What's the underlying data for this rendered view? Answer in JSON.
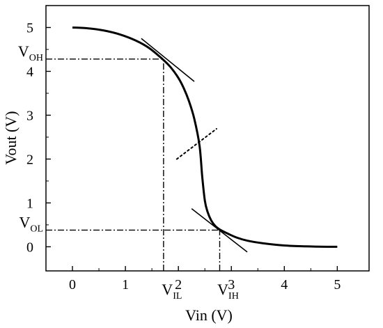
{
  "chart_data": {
    "type": "line",
    "xlabel": "Vin (V)",
    "ylabel": "Vout (V)",
    "xlim": [
      -0.5,
      5.6
    ],
    "ylim": [
      -0.55,
      5.5
    ],
    "x_ticks": [
      0,
      1,
      2,
      3,
      4,
      5
    ],
    "y_ticks": [
      0,
      1,
      2,
      3,
      4,
      5
    ],
    "grid": false,
    "series": [
      {
        "x": [
          0,
          0.3,
          0.6,
          0.9,
          1.2,
          1.45,
          1.7,
          1.85,
          2.0,
          2.1,
          2.2,
          2.3,
          2.4,
          2.45,
          2.5,
          2.55,
          2.62,
          2.7,
          2.8,
          2.95,
          3.1,
          3.3,
          3.6,
          4.0,
          4.4,
          4.8,
          5.0
        ],
        "y": [
          5.0,
          4.98,
          4.93,
          4.84,
          4.7,
          4.53,
          4.28,
          4.1,
          3.85,
          3.62,
          3.32,
          2.92,
          2.3,
          1.6,
          1.05,
          0.8,
          0.6,
          0.47,
          0.38,
          0.29,
          0.21,
          0.14,
          0.08,
          0.03,
          0.01,
          0.0,
          0.0
        ],
        "color": "#000000"
      }
    ],
    "tangent_lines": [
      {
        "x": [
          1.3,
          2.3
        ],
        "y": [
          4.75,
          3.77
        ],
        "style": "solid"
      },
      {
        "x": [
          2.25,
          3.3
        ],
        "y": [
          0.87,
          -0.12
        ],
        "style": "solid"
      },
      {
        "x": [
          1.97,
          2.72
        ],
        "y": [
          2.0,
          2.69
        ],
        "style": "dotted"
      }
    ],
    "reference_lines": [
      {
        "x": [
          -0.5,
          1.72
        ],
        "y": [
          4.28,
          4.28
        ],
        "style": "dash-dot"
      },
      {
        "x": [
          1.72,
          1.72
        ],
        "y": [
          -0.55,
          4.28
        ],
        "style": "dash-dot"
      },
      {
        "x": [
          -0.5,
          2.78
        ],
        "y": [
          0.38,
          0.38
        ],
        "style": "dash-dot"
      },
      {
        "x": [
          2.78,
          2.78
        ],
        "y": [
          -0.55,
          0.38
        ],
        "style": "dash-dot"
      }
    ],
    "annotations": [
      {
        "base": "V",
        "sub": "OH",
        "x": -0.5,
        "y": 4.28,
        "placement": "left-of-axis"
      },
      {
        "base": "V",
        "sub": "OL",
        "x": -0.5,
        "y": 0.38,
        "placement": "left-of-axis"
      },
      {
        "base": "V",
        "sub": "IL",
        "x": 1.72,
        "y": -0.55,
        "placement": "below-axis"
      },
      {
        "base": "V",
        "sub": "IH",
        "x": 2.78,
        "y": -0.55,
        "placement": "below-axis"
      }
    ]
  }
}
